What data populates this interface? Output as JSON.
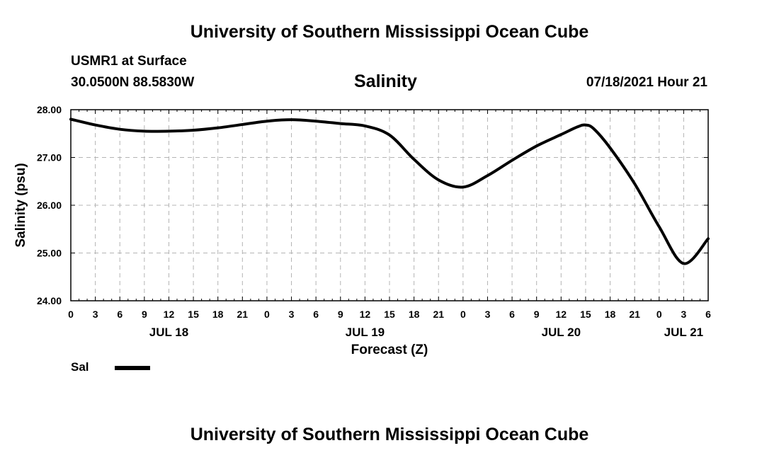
{
  "header": {
    "title": "University of Southern Mississippi Ocean Cube",
    "station": "USMR1 at Surface",
    "coords": "30.0500N  88.5830W",
    "chart_title": "Salinity",
    "datetime": "07/18/2021 Hour 21"
  },
  "footer": {
    "title": "University of Southern Mississippi Ocean Cube"
  },
  "legend": {
    "label": "Sal"
  },
  "colors": {
    "line": "#000000",
    "grid": "#b4b4b4"
  },
  "chart_data": {
    "type": "line",
    "title": "Salinity",
    "xlabel": "Forecast (Z)",
    "ylabel": "Salinity (psu)",
    "x_unit": "hours since 00Z JUL 18",
    "xlim": [
      0,
      78
    ],
    "ylim": [
      24.0,
      28.0
    ],
    "yticks": [
      24.0,
      25.0,
      26.0,
      27.0,
      28.0
    ],
    "ytick_labels": [
      "24.00",
      "25.00",
      "26.00",
      "27.00",
      "28.00"
    ],
    "xticks": [
      0,
      3,
      6,
      9,
      12,
      15,
      18,
      21,
      24,
      27,
      30,
      33,
      36,
      39,
      42,
      45,
      48,
      51,
      54,
      57,
      60,
      63,
      66,
      69,
      72,
      75,
      78
    ],
    "xtick_labels": [
      "0",
      "3",
      "6",
      "9",
      "12",
      "15",
      "18",
      "21",
      "0",
      "3",
      "6",
      "9",
      "12",
      "15",
      "18",
      "21",
      "0",
      "3",
      "6",
      "9",
      "12",
      "15",
      "18",
      "21",
      "0",
      "3",
      "6"
    ],
    "day_labels": [
      {
        "label": "JUL 18",
        "hour": 12
      },
      {
        "label": "JUL 19",
        "hour": 36
      },
      {
        "label": "JUL 20",
        "hour": 60
      },
      {
        "label": "JUL 21",
        "hour": 75
      }
    ],
    "grid": true,
    "series": [
      {
        "name": "Sal",
        "x": [
          0,
          3,
          6,
          9,
          12,
          15,
          18,
          21,
          24,
          27,
          30,
          33,
          36,
          39,
          42,
          45,
          48,
          51,
          54,
          57,
          60,
          62,
          63,
          64,
          66,
          69,
          72,
          75,
          78
        ],
        "values": [
          27.8,
          27.68,
          27.59,
          27.55,
          27.55,
          27.57,
          27.62,
          27.69,
          27.76,
          27.79,
          27.76,
          27.71,
          27.66,
          27.47,
          26.96,
          26.53,
          26.38,
          26.62,
          26.94,
          27.24,
          27.48,
          27.64,
          27.68,
          27.6,
          27.2,
          26.45,
          25.55,
          24.78,
          25.3
        ]
      }
    ]
  }
}
